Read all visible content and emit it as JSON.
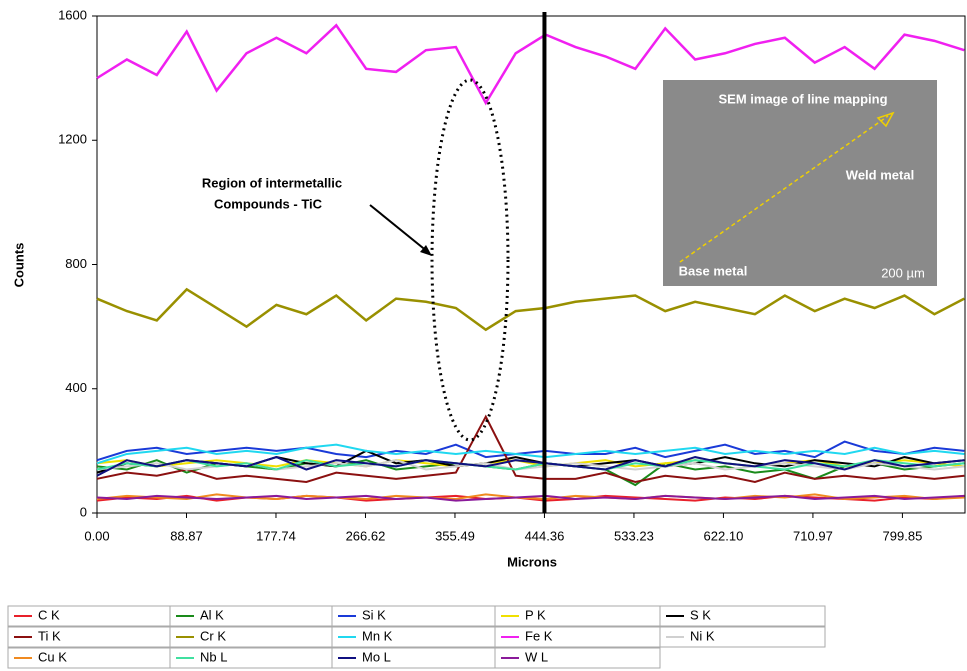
{
  "chart_data": {
    "type": "line",
    "x_label": "Microns",
    "y_label": "Counts",
    "annotation": [
      "Region of intermetallic",
      "Compounds - TiC"
    ],
    "inset": {
      "title": "SEM image of line mapping",
      "labels": [
        "Weld metal",
        "Base metal",
        "200 µm"
      ]
    },
    "vertical_line_x": 444.36,
    "xlim": [
      0,
      862
    ],
    "ylim": [
      0,
      1600
    ],
    "xticks": [
      {
        "value": 0,
        "label": "0.00"
      },
      88.87,
      177.74,
      266.62,
      355.49,
      444.36,
      533.23,
      {
        "value": 622.1,
        "label": "622.10"
      },
      710.97,
      799.85
    ],
    "yticks": [
      0,
      400,
      800,
      1200,
      1600
    ],
    "legend": "bottom",
    "x": [
      0,
      29.7,
      59.4,
      89.1,
      118.8,
      148.5,
      178.2,
      207.9,
      237.6,
      267.3,
      297,
      326.7,
      356.4,
      386.1,
      415.8,
      445.5,
      475.2,
      504.9,
      534.6,
      564.3,
      594,
      623.7,
      653.4,
      683.1,
      712.8,
      742.5,
      772.2,
      801.9,
      831.6,
      861.3
    ],
    "series": [
      {
        "name": "C K",
        "color": "#e8202a",
        "values": [
          40,
          50,
          45,
          55,
          40,
          50,
          45,
          55,
          50,
          40,
          45,
          50,
          55,
          45,
          50,
          40,
          45,
          55,
          50,
          45,
          40,
          50,
          45,
          55,
          50,
          45,
          40,
          50,
          45,
          55
        ]
      },
      {
        "name": "Al K",
        "color": "#1a8a1a",
        "values": [
          150,
          140,
          170,
          130,
          160,
          150,
          140,
          160,
          150,
          170,
          140,
          150,
          160,
          150,
          140,
          160,
          150,
          140,
          90,
          160,
          140,
          150,
          130,
          140,
          110,
          150,
          160,
          140,
          150,
          160
        ]
      },
      {
        "name": "Si K",
        "color": "#1a3ad8",
        "values": [
          170,
          200,
          210,
          190,
          200,
          210,
          200,
          210,
          190,
          180,
          200,
          190,
          220,
          180,
          190,
          200,
          190,
          190,
          210,
          180,
          200,
          220,
          190,
          200,
          180,
          230,
          200,
          190,
          210,
          200
        ]
      },
      {
        "name": "P K",
        "color": "#f0e000",
        "values": [
          160,
          170,
          150,
          160,
          170,
          160,
          150,
          170,
          160,
          150,
          170,
          160,
          150,
          160,
          170,
          150,
          160,
          170,
          150,
          160,
          170,
          160,
          150,
          160,
          170,
          150,
          160,
          170,
          160,
          150
        ]
      },
      {
        "name": "S K",
        "color": "#000000",
        "values": [
          130,
          160,
          150,
          170,
          160,
          150,
          180,
          160,
          150,
          200,
          160,
          170,
          150,
          160,
          180,
          160,
          150,
          160,
          170,
          150,
          160,
          180,
          160,
          150,
          170,
          160,
          150,
          180,
          160,
          170
        ]
      },
      {
        "name": "Ti K",
        "color": "#8b1010",
        "values": [
          110,
          130,
          120,
          140,
          110,
          120,
          110,
          100,
          130,
          120,
          110,
          120,
          130,
          310,
          120,
          110,
          110,
          130,
          100,
          120,
          110,
          120,
          100,
          130,
          110,
          120,
          110,
          120,
          110,
          120
        ]
      },
      {
        "name": "Cr K",
        "color": "#999000",
        "values": [
          690,
          650,
          620,
          720,
          660,
          600,
          670,
          640,
          700,
          620,
          690,
          680,
          660,
          590,
          650,
          660,
          680,
          690,
          700,
          650,
          680,
          660,
          640,
          700,
          650,
          690,
          660,
          700,
          640,
          690
        ]
      },
      {
        "name": "Mn K",
        "color": "#20d8f0",
        "values": [
          160,
          190,
          200,
          210,
          190,
          200,
          190,
          210,
          220,
          200,
          190,
          200,
          190,
          200,
          190,
          180,
          190,
          200,
          190,
          200,
          210,
          190,
          200,
          190,
          200,
          190,
          210,
          190,
          200,
          190
        ]
      },
      {
        "name": "Fe K",
        "color": "#f020f0",
        "values": [
          1400,
          1460,
          1410,
          1550,
          1360,
          1480,
          1530,
          1480,
          1570,
          1430,
          1420,
          1490,
          1500,
          1320,
          1480,
          1540,
          1500,
          1470,
          1430,
          1560,
          1460,
          1480,
          1510,
          1530,
          1450,
          1500,
          1430,
          1540,
          1520,
          1490
        ]
      },
      {
        "name": "Ni K",
        "color": "#d0d0d0",
        "values": [
          140,
          150,
          160,
          140,
          150,
          160,
          140,
          150,
          160,
          150,
          170,
          140,
          150,
          160,
          140,
          150,
          160,
          150,
          140,
          150,
          160,
          140,
          150,
          160,
          150,
          140,
          160,
          150,
          140,
          150
        ]
      },
      {
        "name": "Cu K",
        "color": "#f08a20",
        "values": [
          45,
          55,
          50,
          45,
          60,
          50,
          45,
          55,
          50,
          45,
          55,
          50,
          45,
          60,
          50,
          45,
          55,
          50,
          45,
          55,
          50,
          45,
          55,
          50,
          60,
          45,
          50,
          55,
          45,
          50
        ]
      },
      {
        "name": "Nb L",
        "color": "#40e0a0",
        "values": [
          140,
          160,
          150,
          170,
          150,
          160,
          140,
          170,
          150,
          160,
          150,
          170,
          160,
          150,
          140,
          160,
          150,
          140,
          160,
          150,
          170,
          160,
          150,
          140,
          160,
          150,
          170,
          160,
          150,
          160
        ]
      },
      {
        "name": "Mo L",
        "color": "#101080",
        "values": [
          120,
          170,
          150,
          170,
          160,
          150,
          180,
          140,
          170,
          160,
          150,
          170,
          160,
          150,
          170,
          160,
          150,
          140,
          170,
          150,
          180,
          160,
          150,
          170,
          160,
          140,
          170,
          150,
          160,
          170
        ]
      },
      {
        "name": "W L",
        "color": "#8a1a9a",
        "values": [
          50,
          45,
          55,
          50,
          45,
          50,
          55,
          45,
          50,
          55,
          45,
          50,
          40,
          45,
          50,
          55,
          45,
          50,
          45,
          55,
          50,
          45,
          50,
          55,
          45,
          50,
          55,
          45,
          50,
          55
        ]
      }
    ]
  }
}
